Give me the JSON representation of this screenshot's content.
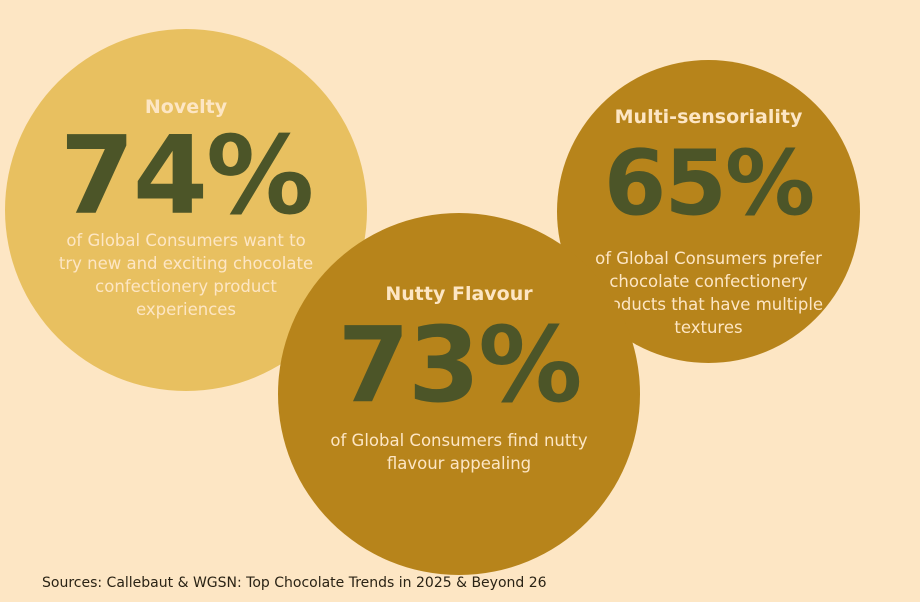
{
  "stats": [
    {
      "label": "Novelty",
      "value": "74%",
      "description": "of Global Consumers want to try new and exciting chocolate confectionery product experiences"
    },
    {
      "label": "Nutty Flavour",
      "value": "73%",
      "description": "of Global Consumers find nutty flavour appealing"
    },
    {
      "label": "Multi-sensoriality",
      "value": "65%",
      "description": "of Global Consumers prefer chocolate confectionery products that have multiple textures"
    }
  ],
  "sources": "Sources: Callebaut & WGSN: Top Chocolate Trends in 2025 & Beyond 26",
  "colors": {
    "background": "#fde6c4",
    "circle_light": "#e8c060",
    "circle_dark": "#b7841b",
    "percent_text": "#4c5528",
    "label_text": "#fde6c4"
  }
}
